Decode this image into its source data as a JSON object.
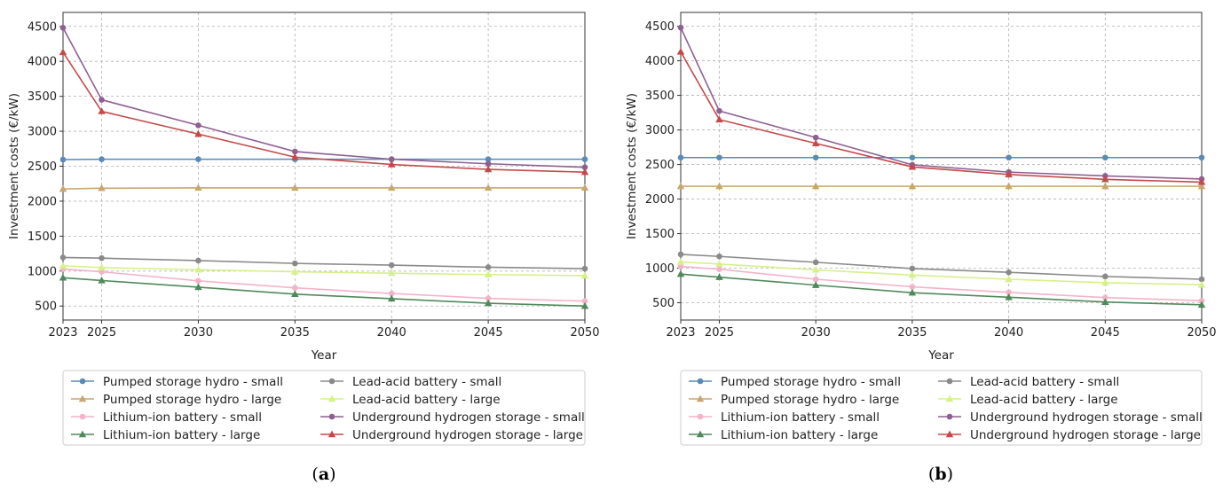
{
  "chart_data": [
    {
      "type": "line",
      "panel_label": "a",
      "xlabel": "Year",
      "ylabel": "Investment costs (€/kW)",
      "xlim": [
        2023,
        2050
      ],
      "ylim": [
        300,
        4700
      ],
      "x_ticks": [
        2023,
        2025,
        2030,
        2035,
        2040,
        2045,
        2050
      ],
      "y_ticks": [
        500,
        1000,
        1500,
        2000,
        2500,
        3000,
        3500,
        4000,
        4500
      ],
      "grid": true,
      "legend_position": "bottom",
      "x": [
        2023,
        2025,
        2030,
        2035,
        2040,
        2045,
        2050
      ],
      "series": [
        {
          "name": "Pumped storage hydro - small",
          "color": "#5a8ab8",
          "marker": "circle",
          "values": [
            2595,
            2600,
            2600,
            2600,
            2600,
            2600,
            2600
          ]
        },
        {
          "name": "Pumped storage hydro - large",
          "color": "#c8a66e",
          "marker": "triangle",
          "values": [
            2175,
            2185,
            2190,
            2190,
            2190,
            2190,
            2190
          ]
        },
        {
          "name": "Lithium-ion battery - small",
          "color": "#f3b3c8",
          "marker": "circle",
          "values": [
            1030,
            990,
            860,
            760,
            680,
            610,
            570
          ]
        },
        {
          "name": "Lithium-ion battery - large",
          "color": "#4f8a5a",
          "marker": "triangle",
          "values": [
            905,
            865,
            770,
            670,
            605,
            540,
            500
          ]
        },
        {
          "name": "Lead-acid battery - small",
          "color": "#8a8a8a",
          "marker": "circle",
          "values": [
            1195,
            1185,
            1150,
            1110,
            1085,
            1055,
            1035
          ]
        },
        {
          "name": "Lead-acid battery - large",
          "color": "#d6f08a",
          "marker": "triangle",
          "values": [
            1075,
            1050,
            1020,
            990,
            970,
            950,
            935
          ]
        },
        {
          "name": "Underground hydrogen storage - small",
          "color": "#8e5f92",
          "marker": "circle",
          "values": [
            4480,
            3450,
            3085,
            2710,
            2600,
            2535,
            2485
          ]
        },
        {
          "name": "Underground hydrogen storage - large",
          "color": "#c44a4a",
          "marker": "triangle",
          "values": [
            4130,
            3285,
            2960,
            2630,
            2525,
            2455,
            2415
          ]
        }
      ]
    },
    {
      "type": "line",
      "panel_label": "b",
      "xlabel": "Year",
      "ylabel": "Investment costs (€/kW)",
      "xlim": [
        2023,
        2050
      ],
      "ylim": [
        250,
        4700
      ],
      "x_ticks": [
        2023,
        2025,
        2030,
        2035,
        2040,
        2045,
        2050
      ],
      "y_ticks": [
        500,
        1000,
        1500,
        2000,
        2500,
        3000,
        3500,
        4000,
        4500
      ],
      "grid": true,
      "legend_position": "bottom",
      "x": [
        2023,
        2025,
        2030,
        2035,
        2040,
        2045,
        2050
      ],
      "series": [
        {
          "name": "Pumped storage hydro - small",
          "color": "#5a8ab8",
          "marker": "circle",
          "values": [
            2600,
            2600,
            2600,
            2600,
            2600,
            2600,
            2600
          ]
        },
        {
          "name": "Pumped storage hydro - large",
          "color": "#c8a66e",
          "marker": "triangle",
          "values": [
            2185,
            2185,
            2185,
            2185,
            2185,
            2185,
            2185
          ]
        },
        {
          "name": "Lithium-ion battery - small",
          "color": "#f3b3c8",
          "marker": "circle",
          "values": [
            1025,
            985,
            840,
            730,
            650,
            575,
            530
          ]
        },
        {
          "name": "Lithium-ion battery - large",
          "color": "#4f8a5a",
          "marker": "triangle",
          "values": [
            915,
            870,
            755,
            645,
            580,
            510,
            470
          ]
        },
        {
          "name": "Lead-acid battery - small",
          "color": "#8a8a8a",
          "marker": "circle",
          "values": [
            1200,
            1170,
            1085,
            995,
            940,
            880,
            840
          ]
        },
        {
          "name": "Lead-acid battery - large",
          "color": "#d6f08a",
          "marker": "triangle",
          "values": [
            1090,
            1060,
            975,
            900,
            840,
            790,
            760
          ]
        },
        {
          "name": "Underground hydrogen storage - small",
          "color": "#8e5f92",
          "marker": "circle",
          "values": [
            4480,
            3275,
            2890,
            2495,
            2390,
            2335,
            2290
          ]
        },
        {
          "name": "Underground hydrogen storage - large",
          "color": "#c44a4a",
          "marker": "triangle",
          "values": [
            4130,
            3150,
            2805,
            2465,
            2355,
            2285,
            2245
          ]
        }
      ]
    }
  ]
}
